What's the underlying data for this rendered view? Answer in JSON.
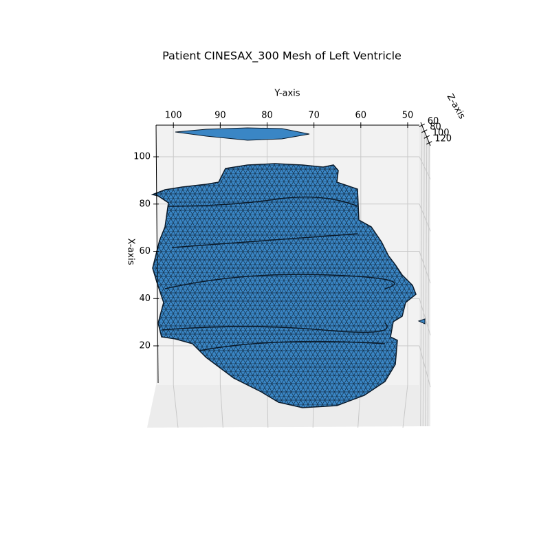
{
  "chart_data": {
    "type": "mesh3d",
    "title": "Patient CINESAX_300 Mesh of Left Ventricle",
    "x_label": "X-axis",
    "y_label": "Y-axis",
    "z_label": "Z-axis",
    "xlim": [
      4.3,
      113.4
    ],
    "xticks": [
      20,
      40,
      60,
      80,
      100
    ],
    "ylim": [
      103.7,
      47.5
    ],
    "yticks": [
      100,
      90,
      80,
      70,
      60,
      50
    ],
    "zlim": [
      50,
      130
    ],
    "zticks": [
      60,
      80,
      100,
      120
    ],
    "color": "#3a86c5",
    "edge_color": "#0a1a2a",
    "grid": true
  }
}
